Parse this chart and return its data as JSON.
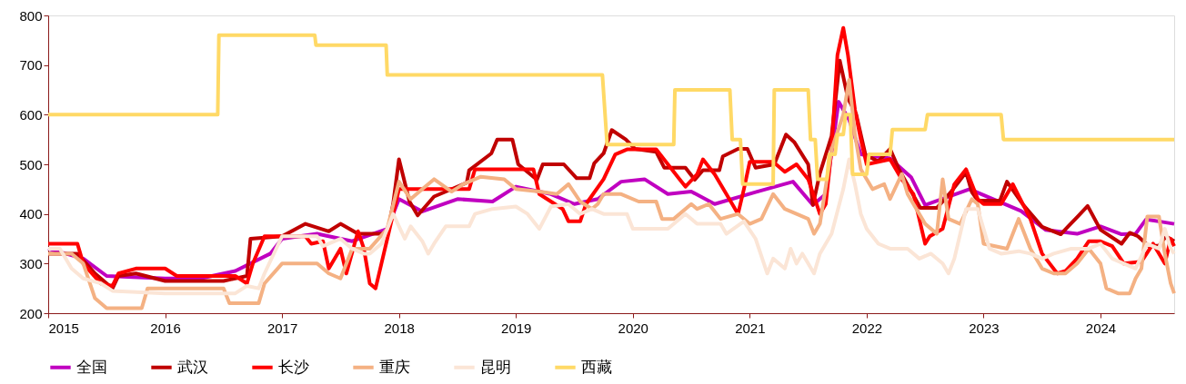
{
  "chart_data": {
    "type": "line",
    "xlim": [
      2015,
      2024.63
    ],
    "xticks": [
      2015,
      2016,
      2017,
      2018,
      2019,
      2020,
      2021,
      2022,
      2023,
      2024
    ],
    "ylim": [
      200,
      800
    ],
    "yticks": [
      200,
      300,
      400,
      500,
      600,
      700,
      800
    ],
    "grid": false,
    "legend": "bottom",
    "marker": "none",
    "line_style": "solid",
    "series": [
      {
        "name": "全国",
        "color": "#c000c0",
        "x": [
          2015,
          2015.3,
          2015.5,
          2016,
          2016.3,
          2016.6,
          2016.9,
          2017.0,
          2017.3,
          2017.6,
          2017.9,
          2018.0,
          2018.2,
          2018.5,
          2018.8,
          2019.0,
          2019.3,
          2019.5,
          2019.7,
          2019.9,
          2020.1,
          2020.3,
          2020.5,
          2020.7,
          2021.05,
          2021.37,
          2021.54,
          2021.65,
          2021.76,
          2021.85,
          2021.95,
          2022.2,
          2022.38,
          2022.5,
          2022.88,
          2023.32,
          2023.53,
          2023.8,
          2024.0,
          2024.18,
          2024.3,
          2024.39,
          2024.5,
          2024.63
        ],
        "values": [
          330,
          310,
          275,
          270,
          270,
          285,
          320,
          350,
          360,
          345,
          370,
          430,
          405,
          430,
          425,
          455,
          440,
          420,
          430,
          465,
          470,
          440,
          445,
          420,
          444,
          465,
          418,
          440,
          626,
          590,
          520,
          512,
          474,
          418,
          450,
          406,
          368,
          360,
          375,
          359,
          360,
          389,
          385,
          380
        ]
      },
      {
        "name": "武汉",
        "color": "#c00000",
        "x": [
          2015,
          2015.25,
          2015.4,
          2015.55,
          2015.6,
          2015.75,
          2016.0,
          2016.5,
          2016.7,
          2016.73,
          2017.0,
          2017.2,
          2017.4,
          2017.5,
          2017.65,
          2017.9,
          2017.95,
          2018.0,
          2018.09,
          2018.16,
          2018.3,
          2018.58,
          2018.6,
          2018.79,
          2018.84,
          2018.97,
          2019.02,
          2019.18,
          2019.23,
          2019.41,
          2019.52,
          2019.63,
          2019.67,
          2019.75,
          2019.82,
          2019.94,
          2020.02,
          2020.2,
          2020.27,
          2020.45,
          2020.53,
          2020.6,
          2020.74,
          2020.77,
          2020.9,
          2020.98,
          2021.05,
          2021.21,
          2021.31,
          2021.38,
          2021.5,
          2021.54,
          2021.6,
          2021.7,
          2021.77,
          2021.84,
          2021.91,
          2021.99,
          2022.1,
          2022.2,
          2022.28,
          2022.46,
          2022.6,
          2022.72,
          2022.85,
          2022.9,
          2022.95,
          2023.14,
          2023.2,
          2023.34,
          2023.5,
          2023.66,
          2023.72,
          2023.81,
          2023.89,
          2024.0,
          2024.18,
          2024.25,
          2024.32,
          2024.41,
          2024.5,
          2024.56,
          2024.63
        ],
        "values": [
          320,
          320,
          280,
          250,
          275,
          280,
          265,
          265,
          275,
          350,
          355,
          380,
          365,
          380,
          360,
          360,
          420,
          510,
          425,
          397,
          435,
          463,
          488,
          522,
          550,
          550,
          500,
          469,
          500,
          500,
          472,
          472,
          502,
          522,
          569,
          550,
          531,
          525,
          493,
          493,
          469,
          488,
          488,
          516,
          531,
          531,
          493,
          500,
          560,
          545,
          500,
          418,
          482,
          557,
          709,
          633,
          601,
          519,
          506,
          531,
          488,
          412,
          412,
          444,
          484,
          444,
          427,
          427,
          465,
          418,
          374,
          359,
          374,
          396,
          416,
          368,
          340,
          362,
          355,
          336,
          336,
          355,
          345
        ]
      },
      {
        "name": "长沙",
        "color": "#ff0000",
        "x": [
          2015,
          2015.25,
          2015.3,
          2015.45,
          2015.55,
          2015.6,
          2015.75,
          2016.0,
          2016.1,
          2016.6,
          2016.7,
          2016.75,
          2016.85,
          2017.2,
          2017.25,
          2017.35,
          2017.4,
          2017.5,
          2017.55,
          2017.65,
          2017.7,
          2017.75,
          2017.8,
          2017.85,
          2017.9,
          2017.95,
          2018.0,
          2018.3,
          2018.6,
          2018.65,
          2019.0,
          2019.15,
          2019.2,
          2019.4,
          2019.45,
          2019.55,
          2019.6,
          2019.75,
          2019.85,
          2019.95,
          2020.2,
          2020.3,
          2020.4,
          2020.45,
          2020.55,
          2020.6,
          2020.7,
          2020.8,
          2020.9,
          2020.95,
          2021.0,
          2021.2,
          2021.3,
          2021.4,
          2021.5,
          2021.6,
          2021.65,
          2021.7,
          2021.75,
          2021.8,
          2021.84,
          2021.9,
          2021.95,
          2022.0,
          2022.2,
          2022.3,
          2022.4,
          2022.5,
          2022.54,
          2022.65,
          2022.75,
          2022.85,
          2022.95,
          2023.0,
          2023.15,
          2023.25,
          2023.4,
          2023.5,
          2023.63,
          2023.7,
          2023.8,
          2023.9,
          2024.0,
          2024.1,
          2024.2,
          2024.35,
          2024.45,
          2024.55,
          2024.6,
          2024.63
        ],
        "values": [
          340,
          340,
          300,
          260,
          255,
          280,
          290,
          290,
          275,
          275,
          260,
          300,
          355,
          355,
          340,
          345,
          290,
          330,
          280,
          365,
          330,
          260,
          250,
          300,
          350,
          400,
          450,
          450,
          450,
          490,
          490,
          490,
          440,
          410,
          385,
          385,
          420,
          470,
          520,
          530,
          530,
          500,
          470,
          455,
          480,
          510,
          480,
          440,
          400,
          450,
          505,
          505,
          485,
          500,
          470,
          400,
          420,
          530,
          720,
          775,
          720,
          610,
          550,
          500,
          510,
          470,
          440,
          340,
          355,
          370,
          460,
          490,
          430,
          420,
          420,
          460,
          390,
          320,
          280,
          285,
          310,
          345,
          345,
          335,
          300,
          304,
          340,
          300,
          350,
          335
        ]
      },
      {
        "name": "重庆",
        "color": "#f4b183",
        "x": [
          2015,
          2015.2,
          2015.3,
          2015.4,
          2015.5,
          2015.8,
          2015.85,
          2016.5,
          2016.55,
          2016.8,
          2016.85,
          2017.0,
          2017.3,
          2017.4,
          2017.5,
          2017.6,
          2017.75,
          2017.9,
          2018.0,
          2018.1,
          2018.2,
          2018.3,
          2018.45,
          2018.55,
          2018.7,
          2018.9,
          2019.0,
          2019.2,
          2019.35,
          2019.45,
          2019.55,
          2019.65,
          2019.7,
          2019.75,
          2019.9,
          2020.05,
          2020.2,
          2020.25,
          2020.35,
          2020.5,
          2020.55,
          2020.65,
          2020.75,
          2020.9,
          2021.0,
          2021.1,
          2021.2,
          2021.3,
          2021.4,
          2021.5,
          2021.55,
          2021.6,
          2021.7,
          2021.8,
          2021.85,
          2021.9,
          2021.95,
          2022.05,
          2022.15,
          2022.2,
          2022.3,
          2022.35,
          2022.4,
          2022.5,
          2022.6,
          2022.65,
          2022.7,
          2022.8,
          2022.9,
          2022.95,
          2023.0,
          2023.2,
          2023.3,
          2023.4,
          2023.5,
          2023.6,
          2023.7,
          2023.8,
          2023.9,
          2024.0,
          2024.05,
          2024.15,
          2024.25,
          2024.3,
          2024.35,
          2024.4,
          2024.5,
          2024.55,
          2024.6,
          2024.63
        ],
        "values": [
          320,
          320,
          300,
          230,
          210,
          210,
          250,
          250,
          220,
          220,
          260,
          300,
          300,
          280,
          270,
          330,
          330,
          370,
          465,
          430,
          450,
          470,
          445,
          460,
          475,
          470,
          450,
          445,
          440,
          460,
          425,
          410,
          420,
          440,
          440,
          425,
          425,
          390,
          390,
          420,
          410,
          420,
          390,
          400,
          380,
          390,
          440,
          410,
          400,
          390,
          360,
          380,
          530,
          600,
          670,
          560,
          490,
          450,
          460,
          430,
          480,
          440,
          420,
          380,
          360,
          470,
          390,
          380,
          430,
          420,
          340,
          330,
          390,
          330,
          290,
          280,
          280,
          300,
          330,
          300,
          250,
          240,
          240,
          270,
          290,
          395,
          395,
          320,
          260,
          240
        ]
      },
      {
        "name": "昆明",
        "color": "#fbe5d6",
        "x": [
          2015,
          2015.1,
          2015.2,
          2015.3,
          2015.45,
          2015.55,
          2016.0,
          2016.6,
          2016.7,
          2016.8,
          2016.85,
          2017.0,
          2017.3,
          2017.35,
          2017.5,
          2017.6,
          2017.7,
          2017.75,
          2017.85,
          2017.95,
          2018.05,
          2018.1,
          2018.2,
          2018.25,
          2018.3,
          2018.4,
          2018.6,
          2018.65,
          2018.8,
          2019.0,
          2019.1,
          2019.2,
          2019.3,
          2019.45,
          2019.55,
          2019.65,
          2019.75,
          2019.95,
          2020.0,
          2020.3,
          2020.45,
          2020.55,
          2020.75,
          2020.8,
          2020.95,
          2021.05,
          2021.15,
          2021.2,
          2021.3,
          2021.35,
          2021.4,
          2021.45,
          2021.5,
          2021.55,
          2021.6,
          2021.7,
          2021.8,
          2021.85,
          2021.9,
          2021.95,
          2022.0,
          2022.1,
          2022.2,
          2022.35,
          2022.45,
          2022.55,
          2022.65,
          2022.7,
          2022.75,
          2022.85,
          2022.95,
          2023.05,
          2023.15,
          2023.3,
          2023.4,
          2023.5,
          2023.6,
          2023.75,
          2023.9,
          2024.0,
          2024.1,
          2024.2,
          2024.3,
          2024.4,
          2024.5,
          2024.55,
          2024.6,
          2024.63
        ],
        "values": [
          330,
          330,
          290,
          270,
          260,
          245,
          240,
          240,
          255,
          250,
          280,
          355,
          355,
          335,
          350,
          330,
          320,
          320,
          340,
          400,
          350,
          375,
          345,
          320,
          340,
          375,
          375,
          400,
          410,
          415,
          400,
          370,
          415,
          420,
          400,
          410,
          400,
          400,
          370,
          370,
          400,
          380,
          380,
          360,
          385,
          350,
          280,
          310,
          290,
          330,
          300,
          320,
          300,
          280,
          320,
          360,
          450,
          510,
          460,
          400,
          370,
          340,
          330,
          330,
          310,
          320,
          300,
          280,
          310,
          410,
          410,
          330,
          320,
          325,
          320,
          310,
          320,
          330,
          330,
          340,
          310,
          300,
          290,
          340,
          330,
          370,
          330,
          320
        ]
      },
      {
        "name": "西藏",
        "color": "#ffd966",
        "x": [
          2015,
          2016.45,
          2016.46,
          2017.28,
          2017.29,
          2017.89,
          2017.9,
          2019.74,
          2019.78,
          2020.35,
          2020.36,
          2020.83,
          2020.85,
          2020.92,
          2020.94,
          2021.2,
          2021.21,
          2021.5,
          2021.52,
          2021.56,
          2021.58,
          2021.66,
          2021.68,
          2021.73,
          2021.75,
          2021.8,
          2021.82,
          2021.86,
          2021.88,
          2022.0,
          2022.02,
          2022.2,
          2022.22,
          2022.5,
          2022.52,
          2023.15,
          2023.17,
          2024.63
        ],
        "values": [
          600,
          600,
          760,
          760,
          740,
          740,
          680,
          680,
          540,
          540,
          650,
          650,
          550,
          550,
          460,
          460,
          650,
          650,
          550,
          550,
          470,
          470,
          520,
          520,
          560,
          560,
          600,
          600,
          480,
          480,
          520,
          520,
          570,
          570,
          600,
          600,
          550,
          550
        ]
      }
    ]
  }
}
